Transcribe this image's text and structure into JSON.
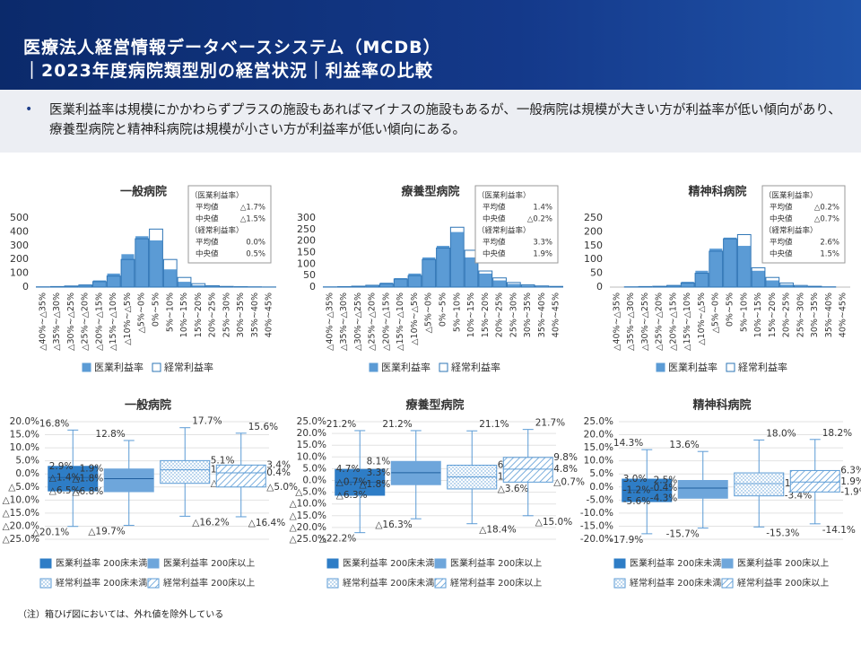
{
  "header": {
    "title_line1": "医療法人経営情報データベースシステム（MCDB）",
    "title_line2": "｜2023年度病院類型別の経営状況｜利益率の比較"
  },
  "bullet": "医業利益率は規模にかかわらずプラスの施設もあればマイナスの施設もあるが、一般病院は規模が大きい方が利益率が低い傾向があり、療養型病院と精神科病院は規模が小さい方が利益率が低い傾向にある。",
  "note": "（注）箱ひげ図においては、外れ値を除外している",
  "chart_data": [
    {
      "type": "bar",
      "title": "一般病院",
      "categories": [
        "△40%~△35%",
        "△35%~△30%",
        "△30%~△25%",
        "△25%~△20%",
        "△20%~△15%",
        "△15%~△10%",
        "△10%~△5%",
        "△5%~0%",
        "0%~5%",
        "5%~10%",
        "10%~15%",
        "15%~20%",
        "20%~25%",
        "25%~30%",
        "30%~35%",
        "35%~40%",
        "40%~45%"
      ],
      "series": [
        {
          "name": "医業利益率",
          "color": "#5b9bd5",
          "style": "filled",
          "values": [
            3,
            5,
            10,
            20,
            50,
            100,
            240,
            370,
            340,
            130,
            40,
            15,
            8,
            5,
            3,
            2,
            1
          ]
        },
        {
          "name": "経常利益率",
          "color": "#2e75b6",
          "style": "outline",
          "values": [
            2,
            4,
            8,
            15,
            40,
            80,
            200,
            350,
            420,
            200,
            70,
            25,
            10,
            5,
            3,
            2,
            1
          ]
        }
      ],
      "ylim": [
        0,
        500
      ],
      "yticks": [
        0,
        100,
        200,
        300,
        400,
        500
      ],
      "stats": [
        {
          "name": "（医業利益率）",
          "rows": [
            [
              "平均値",
              "△1.7%"
            ],
            [
              "中央値",
              "△1.5%"
            ]
          ]
        },
        {
          "name": "（経常利益率）",
          "rows": [
            [
              "平均値",
              "0.0%"
            ],
            [
              "中央値",
              "0.5%"
            ]
          ]
        }
      ]
    },
    {
      "type": "bar",
      "title": "療養型病院",
      "categories": [
        "△40%~△35%",
        "△35%~△30%",
        "△30%~△25%",
        "△25%~△20%",
        "△20%~△15%",
        "△15%~△10%",
        "△10%~△5%",
        "△5%~0%",
        "0%~5%",
        "5%~10%",
        "10%~15%",
        "15%~20%",
        "20%~25%",
        "25%~30%",
        "30%~35%",
        "35%~40%",
        "40%~45%"
      ],
      "series": [
        {
          "name": "医業利益率",
          "color": "#5b9bd5",
          "style": "filled",
          "values": [
            1,
            2,
            4,
            8,
            20,
            40,
            60,
            130,
            180,
            240,
            130,
            60,
            30,
            15,
            8,
            4,
            2
          ]
        },
        {
          "name": "経常利益率",
          "color": "#2e75b6",
          "style": "outline",
          "values": [
            1,
            2,
            4,
            8,
            15,
            35,
            50,
            120,
            170,
            260,
            160,
            70,
            40,
            20,
            10,
            5,
            3
          ]
        }
      ],
      "ylim": [
        0,
        300
      ],
      "yticks": [
        0,
        50,
        100,
        150,
        200,
        250,
        300
      ],
      "stats": [
        {
          "name": "（医業利益率）",
          "rows": [
            [
              "平均値",
              "1.4%"
            ],
            [
              "中央値",
              "△0.2%"
            ]
          ]
        },
        {
          "name": "（経常利益率）",
          "rows": [
            [
              "平均値",
              "3.3%"
            ],
            [
              "中央値",
              "1.9%"
            ]
          ]
        }
      ]
    },
    {
      "type": "bar",
      "title": "精神科病院",
      "categories": [
        "△40%~△35%",
        "△35%~△30%",
        "△30%~△25%",
        "△25%~△20%",
        "△20%~△15%",
        "△15%~△10%",
        "△10%~△5%",
        "△5%~0%",
        "0%~5%",
        "5%~10%",
        "10%~15%",
        "15%~20%",
        "20%~25%",
        "25%~30%",
        "30%~35%",
        "35%~40%",
        "40%~45%"
      ],
      "series": [
        {
          "name": "医業利益率",
          "color": "#5b9bd5",
          "style": "filled",
          "values": [
            0,
            1,
            2,
            4,
            8,
            20,
            60,
            140,
            180,
            150,
            60,
            25,
            10,
            5,
            2,
            1,
            0
          ]
        },
        {
          "name": "経常利益率",
          "color": "#2e75b6",
          "style": "outline",
          "values": [
            0,
            1,
            2,
            3,
            6,
            15,
            50,
            130,
            175,
            190,
            70,
            35,
            15,
            6,
            3,
            1,
            0
          ]
        }
      ],
      "ylim": [
        0,
        250
      ],
      "yticks": [
        0,
        50,
        100,
        150,
        200,
        250
      ],
      "stats": [
        {
          "name": "（医業利益率）",
          "rows": [
            [
              "平均値",
              "△0.2%"
            ],
            [
              "中央値",
              "△0.7%"
            ]
          ]
        },
        {
          "name": "（経常利益率）",
          "rows": [
            [
              "平均値",
              "2.6%"
            ],
            [
              "中央値",
              "1.5%"
            ]
          ]
        }
      ]
    },
    {
      "type": "box",
      "title": "一般病院",
      "series": [
        {
          "name": "医業利益率 200床未満",
          "color": "#2e7dc6",
          "fill": "solid",
          "values": [
            -20.1,
            -6.5,
            -1.4,
            2.9,
            16.8
          ],
          "value_labels": [
            "△20.1%",
            "△6.5%",
            "△1.4%",
            "2.9%",
            "16.8%"
          ]
        },
        {
          "name": "医業利益率 200床以上",
          "color": "#6ea6db",
          "fill": "solid",
          "values": [
            -19.7,
            -6.8,
            -1.8,
            1.9,
            12.8
          ],
          "value_labels": [
            "△19.7%",
            "△6.8%",
            "△1.8%",
            "1.9%",
            "12.8%"
          ]
        },
        {
          "name": "経常利益率 200床未満",
          "color": "#5b9bd5",
          "fill": "dots",
          "values": [
            -16.2,
            -3.6,
            1.6,
            5.1,
            17.7
          ],
          "value_labels": [
            "△16.2%",
            "△3.6%",
            "1.6%",
            "5.1%",
            "17.7%"
          ]
        },
        {
          "name": "経常利益率 200床以上",
          "color": "#5b9bd5",
          "fill": "hatch",
          "values": [
            -16.4,
            -5.0,
            0.4,
            3.4,
            15.6
          ],
          "value_labels": [
            "△16.4%",
            "△5.0%",
            "0.4%",
            "3.4%",
            "15.6%"
          ]
        }
      ],
      "ylim": [
        -25,
        20
      ],
      "yticks": [
        {
          "value": 20,
          "label": "20.0%"
        },
        {
          "value": 15,
          "label": "15.0%"
        },
        {
          "value": 10,
          "label": "10.0%"
        },
        {
          "value": 5,
          "label": "5.0%"
        },
        {
          "value": 0,
          "label": "0.0%"
        },
        {
          "value": -5,
          "label": "△5.0%"
        },
        {
          "value": -10,
          "label": "△10.0%"
        },
        {
          "value": -15,
          "label": "△15.0%"
        },
        {
          "value": -20,
          "label": "△20.0%"
        },
        {
          "value": -25,
          "label": "△25.0%"
        }
      ],
      "grid": true
    },
    {
      "type": "box",
      "title": "療養型病院",
      "series": [
        {
          "name": "医業利益率 200床未満",
          "color": "#2e7dc6",
          "fill": "solid",
          "values": [
            -22.2,
            -6.3,
            -0.7,
            4.7,
            21.2
          ],
          "value_labels": [
            "△22.2%",
            "△6.3%",
            "△0.7%",
            "4.7%",
            "21.2%"
          ]
        },
        {
          "name": "医業利益率 200床以上",
          "color": "#6ea6db",
          "fill": "solid",
          "values": [
            -16.3,
            -1.8,
            3.3,
            8.1,
            21.2
          ],
          "value_labels": [
            "△16.3%",
            "△1.8%",
            "3.3%",
            "8.1%",
            "21.2%"
          ]
        },
        {
          "name": "経常利益率 200床未満",
          "color": "#5b9bd5",
          "fill": "dots",
          "values": [
            -18.4,
            -3.6,
            1.5,
            6.5,
            21.1
          ],
          "value_labels": [
            "△18.4%",
            "△3.6%",
            "1.5%",
            "6.5%",
            "21.1%"
          ]
        },
        {
          "name": "経常利益率 200床以上",
          "color": "#5b9bd5",
          "fill": "hatch",
          "values": [
            -15.0,
            -0.7,
            4.8,
            9.8,
            21.7
          ],
          "value_labels": [
            "△15.0%",
            "△0.7%",
            "4.8%",
            "9.8%",
            "21.7%"
          ]
        }
      ],
      "ylim": [
        -25,
        25
      ],
      "yticks": [
        {
          "value": 25,
          "label": "25.0%"
        },
        {
          "value": 20,
          "label": "20.0%"
        },
        {
          "value": 15,
          "label": "15.0%"
        },
        {
          "value": 10,
          "label": "10.0%"
        },
        {
          "value": 5,
          "label": "5.0%"
        },
        {
          "value": 0,
          "label": "0.0%"
        },
        {
          "value": -5,
          "label": "△5.0%"
        },
        {
          "value": -10,
          "label": "△10.0%"
        },
        {
          "value": -15,
          "label": "△15.0%"
        },
        {
          "value": -20,
          "label": "△20.0%"
        },
        {
          "value": -25,
          "label": "△25.0%"
        }
      ],
      "grid": true
    },
    {
      "type": "box",
      "title": "精神科病院",
      "series": [
        {
          "name": "医業利益率 200床未満",
          "color": "#2e7dc6",
          "fill": "solid",
          "values": [
            -17.9,
            -5.6,
            -1.2,
            3.0,
            14.3
          ],
          "value_labels": [
            "-17.9%",
            "-5.6%",
            "-1.2%",
            "3.0%",
            "14.3%"
          ]
        },
        {
          "name": "医業利益率 200床以上",
          "color": "#6ea6db",
          "fill": "solid",
          "values": [
            -15.7,
            -4.3,
            -0.4,
            2.5,
            13.6
          ],
          "value_labels": [
            "-15.7%",
            "-4.3%",
            "-0.4%",
            "2.5%",
            "13.6%"
          ]
        },
        {
          "name": "経常利益率 200床未満",
          "color": "#5b9bd5",
          "fill": "dots",
          "values": [
            -15.3,
            -3.4,
            1.3,
            5.4,
            18.0
          ],
          "value_labels": [
            "-15.3%",
            "-3.4%",
            "1.3%",
            null,
            "18.0%"
          ]
        },
        {
          "name": "経常利益率 200床以上",
          "color": "#5b9bd5",
          "fill": "hatch",
          "values": [
            -14.1,
            -1.9,
            1.9,
            6.3,
            18.2
          ],
          "value_labels": [
            "-14.1%",
            "-1.9%",
            "1.9%",
            "6.3%",
            "18.2%"
          ]
        }
      ],
      "ylim": [
        -20,
        25
      ],
      "yticks": [
        {
          "value": 25,
          "label": "25.0%"
        },
        {
          "value": 20,
          "label": "20.0%"
        },
        {
          "value": 15,
          "label": "15.0%"
        },
        {
          "value": 10,
          "label": "10.0%"
        },
        {
          "value": 5,
          "label": "5.0%"
        },
        {
          "value": 0,
          "label": "0.0%"
        },
        {
          "value": -5,
          "label": "-5.0%"
        },
        {
          "value": -10,
          "label": "-10.0%"
        },
        {
          "value": -15,
          "label": "-15.0%"
        },
        {
          "value": -20,
          "label": "-20.0%"
        }
      ],
      "grid": true
    }
  ]
}
